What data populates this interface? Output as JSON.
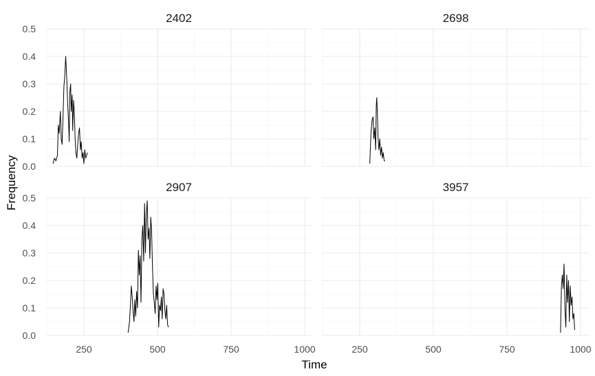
{
  "chart_data": {
    "type": "line",
    "layout": "facet-grid 2x2",
    "xlabel": "Time",
    "ylabel": "Frequency",
    "xlim": [
      130,
      1000
    ],
    "ylim": [
      0,
      0.5
    ],
    "x_ticks": [
      250,
      500,
      750,
      1000
    ],
    "y_ticks": [
      0.0,
      0.1,
      0.2,
      0.3,
      0.4,
      0.5
    ],
    "x_tick_labels": [
      "250",
      "500",
      "750",
      "1000"
    ],
    "y_tick_labels": [
      "0.0",
      "0.1",
      "0.2",
      "0.3",
      "0.4",
      "0.5"
    ],
    "grid": true,
    "line_color": "#000000",
    "panels": [
      {
        "title": "2402",
        "x": [
          145,
          150,
          155,
          160,
          163,
          166,
          170,
          173,
          176,
          179,
          182,
          185,
          188,
          190,
          192,
          195,
          198,
          200,
          202,
          205,
          207,
          210,
          212,
          215,
          218,
          220,
          223,
          226,
          229,
          232,
          235,
          238,
          241,
          244,
          247,
          250,
          253,
          256,
          259,
          262
        ],
        "y": [
          0.01,
          0.03,
          0.02,
          0.04,
          0.15,
          0.12,
          0.2,
          0.1,
          0.08,
          0.18,
          0.29,
          0.33,
          0.4,
          0.36,
          0.31,
          0.22,
          0.16,
          0.09,
          0.27,
          0.3,
          0.2,
          0.26,
          0.13,
          0.24,
          0.18,
          0.1,
          0.05,
          0.03,
          0.08,
          0.12,
          0.14,
          0.06,
          0.09,
          0.03,
          0.05,
          0.01,
          0.06,
          0.03,
          0.04,
          0.05
        ]
      },
      {
        "title": "2698",
        "x": [
          284,
          288,
          292,
          295,
          298,
          301,
          304,
          306,
          308,
          310,
          312,
          315,
          318,
          321,
          324,
          327,
          330,
          333,
          336
        ],
        "y": [
          0.01,
          0.12,
          0.17,
          0.18,
          0.1,
          0.14,
          0.06,
          0.22,
          0.25,
          0.19,
          0.11,
          0.06,
          0.1,
          0.04,
          0.07,
          0.03,
          0.05,
          0.02,
          0.02
        ]
      },
      {
        "title": "2907",
        "x": [
          400,
          405,
          408,
          411,
          414,
          417,
          420,
          423,
          426,
          429,
          432,
          435,
          438,
          441,
          444,
          447,
          450,
          453,
          456,
          459,
          462,
          465,
          468,
          471,
          474,
          477,
          480,
          483,
          486,
          489,
          492,
          495,
          498,
          501,
          504,
          507,
          510,
          513,
          516,
          519,
          522,
          525,
          528,
          531,
          534,
          537
        ],
        "y": [
          0.01,
          0.05,
          0.11,
          0.18,
          0.14,
          0.09,
          0.05,
          0.13,
          0.07,
          0.16,
          0.1,
          0.31,
          0.22,
          0.29,
          0.12,
          0.35,
          0.4,
          0.27,
          0.48,
          0.3,
          0.44,
          0.49,
          0.35,
          0.39,
          0.28,
          0.43,
          0.38,
          0.25,
          0.15,
          0.12,
          0.08,
          0.18,
          0.13,
          0.19,
          0.03,
          0.11,
          0.09,
          0.14,
          0.06,
          0.17,
          0.15,
          0.09,
          0.06,
          0.11,
          0.04,
          0.03
        ]
      },
      {
        "title": "3957",
        "x": [
          932,
          935,
          938,
          941,
          944,
          947,
          950,
          953,
          956,
          959,
          962,
          965,
          968,
          971,
          974,
          977,
          980
        ],
        "y": [
          0.01,
          0.18,
          0.22,
          0.17,
          0.26,
          0.1,
          0.03,
          0.22,
          0.12,
          0.2,
          0.05,
          0.18,
          0.11,
          0.14,
          0.06,
          0.08,
          0.02
        ]
      }
    ]
  }
}
